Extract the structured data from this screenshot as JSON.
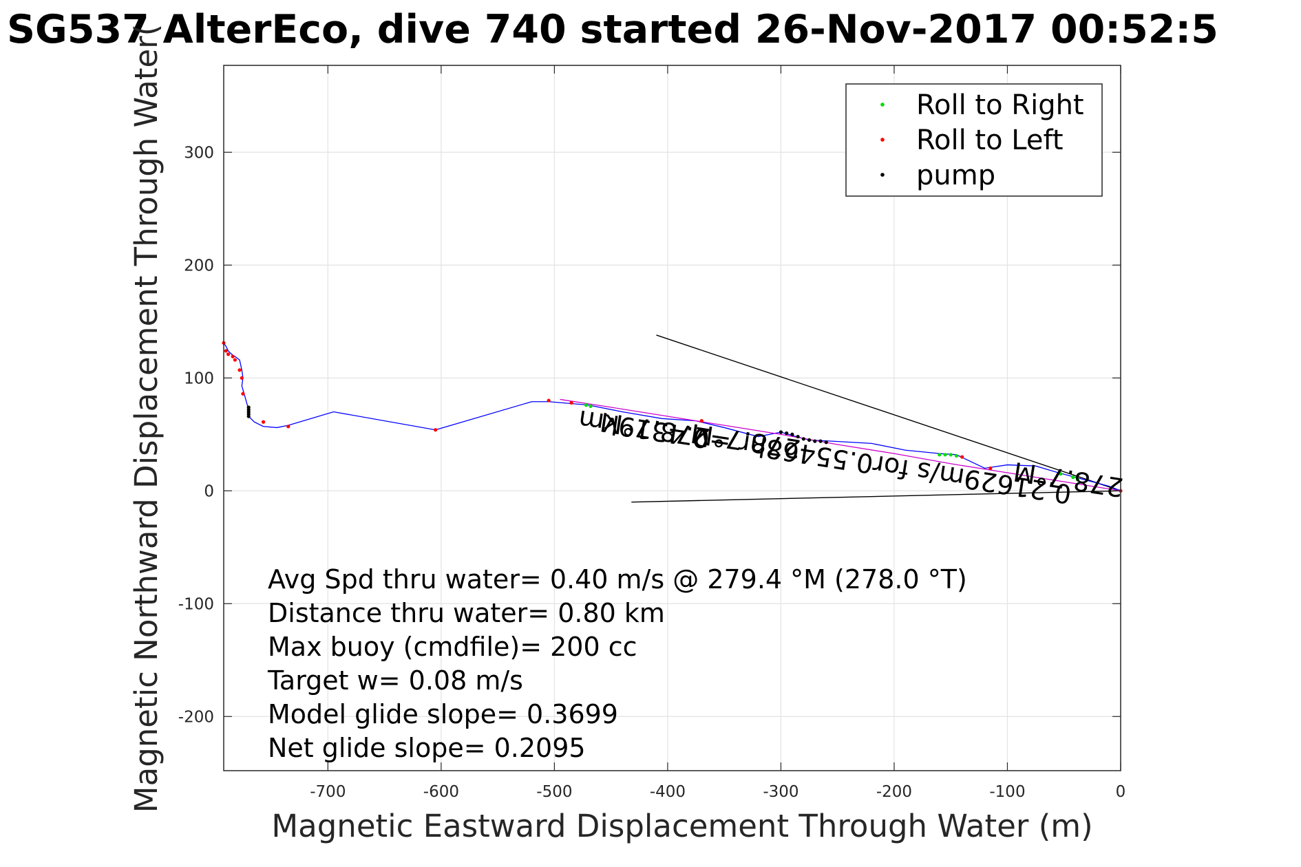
{
  "chart_data": {
    "type": "line",
    "title": "SG537 AlterEco, dive 740 started 26-Nov-2017 00:52:5",
    "xlabel": "Magnetic Eastward Displacement Through Water (m)",
    "ylabel": "Magnetic Northward Displacement Through Water(",
    "xlim": [
      -792,
      0
    ],
    "ylim": [
      -248,
      377
    ],
    "xticks": [
      -700,
      -600,
      -500,
      -400,
      -300,
      -200,
      -100,
      0
    ],
    "yticks": [
      -200,
      -100,
      0,
      100,
      200,
      300
    ],
    "grid": true,
    "legend_position": "top-right",
    "legend": [
      {
        "label": "Roll to Right",
        "color": "#00dd00",
        "marker": "dot"
      },
      {
        "label": "Roll to Left",
        "color": "#ff0000",
        "marker": "dot"
      },
      {
        "label": "pump",
        "color": "#000000",
        "marker": "dot"
      }
    ],
    "series": [
      {
        "color": "#0000ff",
        "x": [
          0,
          -10,
          -25,
          -40,
          -55,
          -75,
          -100,
          -120,
          -145,
          -160,
          -190,
          -220,
          -255,
          -275,
          -290,
          -300,
          -320,
          -350,
          -375,
          -405,
          -440,
          -470,
          -505,
          -520,
          -605,
          -695,
          -735,
          -745,
          -757,
          -765,
          -770,
          -770,
          -774,
          -776,
          -775,
          -776,
          -778,
          -782,
          -785,
          -788,
          -790,
          -792
        ],
        "y": [
          0,
          4,
          8,
          12,
          16,
          22,
          23,
          20,
          32,
          33,
          36,
          42,
          44,
          45,
          49,
          52,
          48,
          56,
          62,
          64,
          70,
          76,
          79,
          79,
          54,
          70,
          58,
          56,
          57,
          61,
          66,
          72,
          86,
          93,
          100,
          107,
          116,
          119,
          121,
          124,
          128,
          131
        ]
      },
      {
        "name": "Roll to Right",
        "color": "#00dd00",
        "x": [
          -472,
          -468,
          -160,
          -155,
          -150,
          -145,
          -53,
          -42,
          -38
        ],
        "y": [
          76,
          75,
          32,
          32,
          32,
          31,
          15,
          12,
          10
        ]
      },
      {
        "name": "Roll to Left",
        "color": "#ff0000",
        "x": [
          0,
          -115,
          -140,
          -370,
          -485,
          -505,
          -605,
          -735,
          -757,
          -775,
          -776,
          -778,
          -782,
          -784,
          -788,
          -790,
          -792
        ],
        "y": [
          0,
          20,
          30,
          62,
          78,
          80,
          54,
          57,
          61,
          86,
          100,
          107,
          116,
          119,
          121,
          124,
          131
        ]
      },
      {
        "name": "pump",
        "color": "#000000",
        "x": [
          -770,
          -770,
          -770,
          -770,
          -770,
          -300,
          -295,
          -290,
          -285,
          -280,
          -275,
          -270,
          -265,
          -260
        ],
        "y": [
          66,
          68,
          70,
          72,
          74,
          52,
          51,
          50,
          48,
          46,
          45,
          44,
          44,
          43
        ]
      },
      {
        "color": "#cc00cc",
        "x": [
          0,
          -50,
          -100,
          -150,
          -200,
          -250,
          -300,
          -350,
          -400,
          -450,
          -495
        ],
        "y": [
          0,
          8,
          16,
          24,
          33,
          41,
          50,
          58,
          66,
          74,
          81
        ]
      }
    ],
    "heading_lines": [
      {
        "x": [
          0,
          -410
        ],
        "y": [
          0,
          138
        ]
      },
      {
        "x": [
          0,
          -432
        ],
        "y": [
          0,
          -10
        ]
      }
    ],
    "annotations": [
      {
        "text": "278.7°M",
        "x": -45,
        "y": 18,
        "rotate": 188.7
      },
      {
        "text": "0.21629m/s for0.55468hr =0.4319km",
        "x": -260,
        "y": 38,
        "rotate": 188.7
      },
      {
        "text": "278.7°M",
        "x": -330,
        "y": 52,
        "rotate": 188.7
      },
      {
        "text": "278.7°M",
        "x": -410,
        "y": 62,
        "rotate": 188.7
      }
    ],
    "stats": [
      "Avg Spd thru water=  0.40 m/s @ 279.4 °M (278.0 °T)",
      "Distance thru water=  0.80 km",
      "Max buoy (cmdfile)= 200 cc",
      "Target w= 0.08 m/s",
      "Model glide slope= 0.3699",
      "Net glide slope= 0.2095"
    ]
  }
}
